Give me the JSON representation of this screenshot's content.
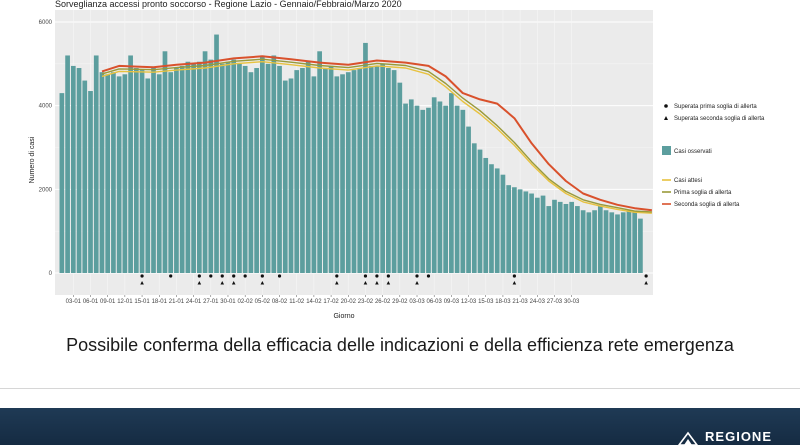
{
  "chart_data": {
    "type": "bar",
    "title": "Sorveglianza accessi pronto soccorso - Regione Lazio - Gennaio/Febbraio/Marzo 2020",
    "xlabel": "Giorno",
    "ylabel": "Numero di casi",
    "ylim": [
      0,
      6000
    ],
    "yticks": [
      0,
      2000,
      4000,
      6000
    ],
    "grid": true,
    "legend_position": "right",
    "xticks": [
      "03-01",
      "06-01",
      "09-01",
      "12-01",
      "15-01",
      "18-01",
      "21-01",
      "24-01",
      "27-01",
      "30-01",
      "02-02",
      "05-02",
      "08-02",
      "11-02",
      "14-02",
      "17-02",
      "20-02",
      "23-02",
      "26-02",
      "29-02",
      "03-03",
      "06-03",
      "09-03",
      "12-03",
      "15-03",
      "18-03",
      "21-03",
      "24-03",
      "27-03",
      "30-03"
    ],
    "start_date": "2020-01-01",
    "series": [
      {
        "name": "Casi osservati",
        "kind": "bar",
        "color": "#5c9e9e",
        "values": [
          4300,
          5200,
          4950,
          4900,
          4600,
          4350,
          5200,
          4800,
          4750,
          4800,
          4700,
          4750,
          5200,
          4900,
          4850,
          4650,
          4900,
          4750,
          5300,
          4800,
          4900,
          4950,
          5050,
          5000,
          5050,
          5300,
          5100,
          5700,
          5000,
          5050,
          5100,
          5000,
          4950,
          4800,
          4900,
          5200,
          5000,
          5200,
          4950,
          4600,
          4650,
          4850,
          4900,
          5050,
          4700,
          5300,
          4900,
          4950,
          4700,
          4750,
          4800,
          4850,
          4900,
          5500,
          4950,
          4950,
          5000,
          4900,
          4850,
          4550,
          4050,
          4150,
          4000,
          3900,
          3950,
          4200,
          4100,
          4000,
          4300,
          4000,
          3900,
          3500,
          3100,
          2950,
          2750,
          2600,
          2500,
          2350,
          2100,
          2050,
          2000,
          1950,
          1900,
          1800,
          1850,
          1600,
          1750,
          1700,
          1650,
          1700,
          1600,
          1500,
          1450,
          1500,
          1600,
          1500,
          1450,
          1400,
          1450,
          1500,
          1450,
          1300
        ]
      },
      {
        "name": "Casi attesi",
        "kind": "line",
        "color": "#e8c23f",
        "points": [
          [
            7,
            4700
          ],
          [
            10,
            4820
          ],
          [
            16,
            4800
          ],
          [
            20,
            4850
          ],
          [
            25,
            4900
          ],
          [
            30,
            5000
          ],
          [
            35,
            5050
          ],
          [
            40,
            4980
          ],
          [
            45,
            4900
          ],
          [
            50,
            4850
          ],
          [
            55,
            4950
          ],
          [
            60,
            4900
          ],
          [
            64,
            4750
          ],
          [
            67,
            4450
          ],
          [
            70,
            4100
          ],
          [
            73,
            3800
          ],
          [
            76,
            3450
          ],
          [
            79,
            3050
          ],
          [
            82,
            2600
          ],
          [
            85,
            2200
          ],
          [
            88,
            1900
          ],
          [
            91,
            1700
          ],
          [
            94,
            1600
          ],
          [
            97,
            1520
          ],
          [
            100,
            1450
          ],
          [
            103,
            1430
          ]
        ]
      },
      {
        "name": "Prima soglia di allerta",
        "kind": "line",
        "color": "#9a9a3a",
        "points": [
          [
            7,
            4760
          ],
          [
            10,
            4880
          ],
          [
            16,
            4860
          ],
          [
            20,
            4910
          ],
          [
            25,
            4960
          ],
          [
            30,
            5060
          ],
          [
            35,
            5110
          ],
          [
            40,
            5040
          ],
          [
            45,
            4960
          ],
          [
            50,
            4910
          ],
          [
            55,
            5010
          ],
          [
            60,
            4960
          ],
          [
            64,
            4820
          ],
          [
            67,
            4530
          ],
          [
            70,
            4180
          ],
          [
            73,
            3880
          ],
          [
            76,
            3520
          ],
          [
            79,
            3120
          ],
          [
            82,
            2660
          ],
          [
            85,
            2250
          ],
          [
            88,
            1950
          ],
          [
            91,
            1750
          ],
          [
            94,
            1640
          ],
          [
            97,
            1560
          ],
          [
            100,
            1480
          ],
          [
            103,
            1460
          ]
        ]
      },
      {
        "name": "Seconda soglia di allerta",
        "kind": "line",
        "color": "#d9512c",
        "points": [
          [
            7,
            4820
          ],
          [
            10,
            4950
          ],
          [
            16,
            4920
          ],
          [
            20,
            4980
          ],
          [
            25,
            5030
          ],
          [
            30,
            5130
          ],
          [
            35,
            5180
          ],
          [
            40,
            5110
          ],
          [
            45,
            5030
          ],
          [
            50,
            4980
          ],
          [
            55,
            5080
          ],
          [
            60,
            5030
          ],
          [
            64,
            4950
          ],
          [
            67,
            4700
          ],
          [
            70,
            4300
          ],
          [
            73,
            4150
          ],
          [
            76,
            4050
          ],
          [
            79,
            3700
          ],
          [
            82,
            3100
          ],
          [
            85,
            2600
          ],
          [
            88,
            2200
          ],
          [
            91,
            1900
          ],
          [
            94,
            1750
          ],
          [
            97,
            1630
          ],
          [
            100,
            1550
          ],
          [
            103,
            1500
          ]
        ]
      },
      {
        "name": "Superata prima soglia di allerta",
        "kind": "marker",
        "marker": "circle",
        "days": [
          14,
          19,
          24,
          26,
          28,
          30,
          32,
          35,
          38,
          48,
          53,
          55,
          57,
          62,
          64,
          79,
          102
        ]
      },
      {
        "name": "Superata seconda soglia di allerta",
        "kind": "marker",
        "marker": "triangle",
        "days": [
          14,
          24,
          28,
          30,
          35,
          48,
          53,
          55,
          57,
          62,
          79,
          102
        ]
      }
    ]
  },
  "caption": "Possibile conferma della efficacia delle indicazioni e della efficienza rete emergenza",
  "footer": {
    "logo_text": "REGIONE",
    "bg_color": "#1f3a55"
  }
}
